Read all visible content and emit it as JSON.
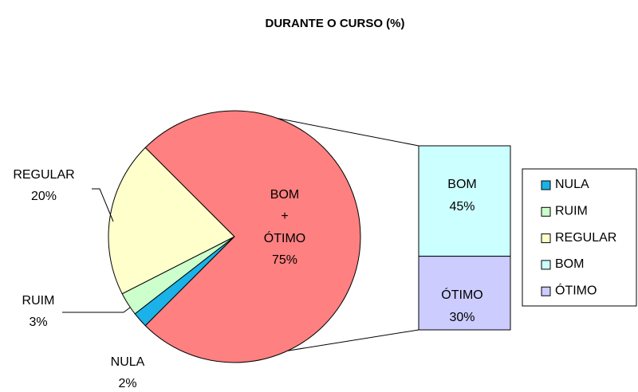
{
  "chart_data": {
    "type": "pie-of-bar",
    "title": "DURANTE O CURSO (%)",
    "categories": [
      "NULA",
      "RUIM",
      "REGULAR",
      "BOM",
      "ÓTIMO"
    ],
    "values": [
      2,
      3,
      20,
      45,
      30
    ],
    "value_labels": [
      "2%",
      "3%",
      "20%",
      "45%",
      "30%"
    ],
    "colors": [
      "#1ab2e8",
      "#ccffcc",
      "#ffffcc",
      "#ccffff",
      "#ccccff"
    ],
    "combined": {
      "label": [
        "BOM",
        "+",
        "ÓTIMO"
      ],
      "value": 75,
      "value_label": "75%",
      "color": "#ff8080"
    },
    "legend": "right"
  }
}
